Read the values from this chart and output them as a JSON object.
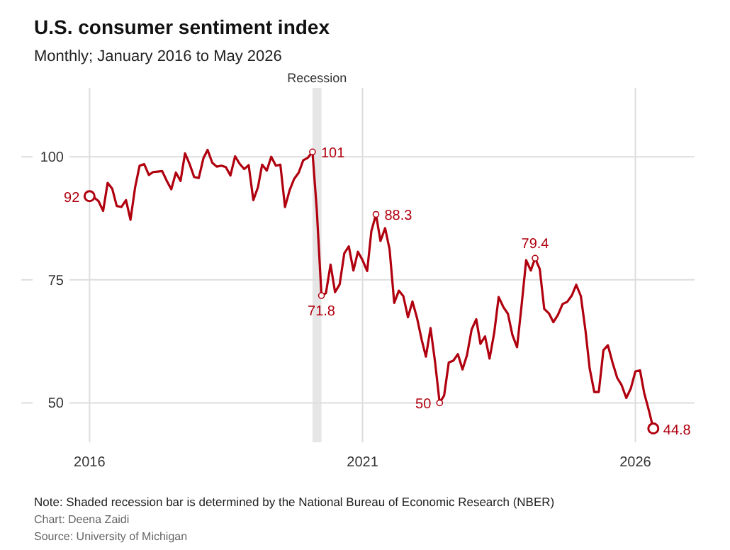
{
  "chart_data": {
    "type": "line",
    "title": "U.S. consumer sentiment index",
    "subtitle": "Monthly; January 2016 to May 2026",
    "x": [
      "2016-01",
      "2016-02",
      "2016-03",
      "2016-04",
      "2016-05",
      "2016-06",
      "2016-07",
      "2016-08",
      "2016-09",
      "2016-10",
      "2016-11",
      "2016-12",
      "2017-01",
      "2017-02",
      "2017-03",
      "2017-04",
      "2017-05",
      "2017-06",
      "2017-07",
      "2017-08",
      "2017-09",
      "2017-10",
      "2017-11",
      "2017-12",
      "2018-01",
      "2018-02",
      "2018-03",
      "2018-04",
      "2018-05",
      "2018-06",
      "2018-07",
      "2018-08",
      "2018-09",
      "2018-10",
      "2018-11",
      "2018-12",
      "2019-01",
      "2019-02",
      "2019-03",
      "2019-04",
      "2019-05",
      "2019-06",
      "2019-07",
      "2019-08",
      "2019-09",
      "2019-10",
      "2019-11",
      "2019-12",
      "2020-01",
      "2020-02",
      "2020-03",
      "2020-04",
      "2020-05",
      "2020-06",
      "2020-07",
      "2020-08",
      "2020-09",
      "2020-10",
      "2020-11",
      "2020-12",
      "2021-01",
      "2021-02",
      "2021-03",
      "2021-04",
      "2021-05",
      "2021-06",
      "2021-07",
      "2021-08",
      "2021-09",
      "2021-10",
      "2021-11",
      "2021-12",
      "2022-01",
      "2022-02",
      "2022-03",
      "2022-04",
      "2022-05",
      "2022-06",
      "2022-07",
      "2022-08",
      "2022-09",
      "2022-10",
      "2022-11",
      "2022-12",
      "2023-01",
      "2023-02",
      "2023-03",
      "2023-04",
      "2023-05",
      "2023-06",
      "2023-07",
      "2023-08",
      "2023-09",
      "2023-10",
      "2023-11",
      "2023-12",
      "2024-01",
      "2024-02",
      "2024-03",
      "2024-04",
      "2024-05",
      "2024-06",
      "2024-07",
      "2024-08",
      "2024-09",
      "2024-10",
      "2024-11",
      "2024-12",
      "2025-01",
      "2025-02",
      "2025-03",
      "2025-04",
      "2025-05",
      "2025-06",
      "2025-07",
      "2025-08",
      "2025-09",
      "2025-10",
      "2025-11",
      "2025-12",
      "2026-01",
      "2026-02",
      "2026-03",
      "2026-04",
      "2026-05"
    ],
    "series": [
      {
        "color": "#b0000f",
        "values": [
          92,
          91.7,
          91,
          89,
          94.7,
          93.5,
          90,
          89.8,
          91.2,
          87.2,
          93.8,
          98.2,
          98.5,
          96.3,
          96.9,
          97,
          97.1,
          95.1,
          93.4,
          96.8,
          95.1,
          100.7,
          98.5,
          95.9,
          95.7,
          99.7,
          101.4,
          98.8,
          98,
          98.2,
          97.9,
          96.2,
          100.1,
          98.6,
          97.5,
          98.3,
          91.2,
          93.8,
          98.4,
          97.2,
          100,
          98.2,
          98.4,
          89.8,
          93.2,
          95.5,
          96.8,
          99.3,
          99.8,
          101,
          89.1,
          71.8,
          72.3,
          78.1,
          72.5,
          74.1,
          80.4,
          81.8,
          76.9,
          80.7,
          79,
          76.8,
          84.9,
          88.3,
          82.9,
          85.5,
          81.2,
          70.3,
          72.8,
          71.7,
          67.4,
          70.6,
          67.2,
          62.8,
          59.4,
          65.2,
          58.4,
          50,
          51.5,
          58.2,
          58.6,
          59.9,
          56.8,
          59.7,
          64.9,
          67,
          62,
          63.5,
          59,
          64.2,
          71.5,
          69.5,
          68.1,
          63.8,
          61.3,
          69.7,
          79,
          76.9,
          79.4,
          77.2,
          69.1,
          68.2,
          66.4,
          67.9,
          70.1,
          70.5,
          71.8,
          74,
          71.7,
          64.7,
          57,
          52.2,
          52.2,
          60.7,
          61.7,
          58.2,
          55.1,
          53.6,
          51,
          52.9,
          56.4,
          56.6,
          52,
          48.5,
          44.8
        ]
      }
    ],
    "xlim": [
      "2014-10",
      "2027-02"
    ],
    "xticks": [
      {
        "value": "2016-01",
        "label": "2016"
      },
      {
        "value": "2021-01",
        "label": "2021"
      },
      {
        "value": "2026-01",
        "label": "2026"
      }
    ],
    "ylim": [
      42,
      114
    ],
    "yticks": [
      50,
      75,
      100
    ],
    "grid": true,
    "marker": "none",
    "line_style": "solid",
    "bands": [
      {
        "axis": "x",
        "from": "2020-02",
        "to": "2020-04",
        "label": "Recession",
        "color": "#e6e6e6"
      }
    ],
    "annotations": [
      {
        "text": "92",
        "x": "2016-01",
        "y": 92
      },
      {
        "text": "101",
        "x": "2020-02",
        "y": 101
      },
      {
        "text": "71.8",
        "x": "2020-04",
        "y": 71.8
      },
      {
        "text": "88.3",
        "x": "2021-04",
        "y": 88.3
      },
      {
        "text": "50",
        "x": "2022-06",
        "y": 50
      },
      {
        "text": "79.4",
        "x": "2024-03",
        "y": 79.4
      },
      {
        "text": "44.8",
        "x": "2026-05",
        "y": 44.8
      },
      "Note: Shaded recession bar is determined by the National Bureau of Economic Research (NBER)",
      "Chart: Deena Zaidi",
      "Source: University of Michigan"
    ]
  }
}
